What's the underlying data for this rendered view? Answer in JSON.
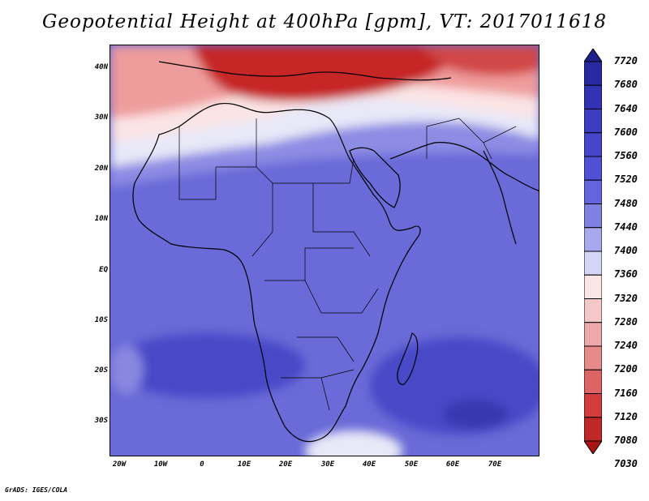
{
  "title": "Geopotential Height at 400hPa [gpm], VT: 2017011618",
  "credit": "GrADS: IGES/COLA",
  "axes": {
    "lat_labels": [
      "40N",
      "30N",
      "20N",
      "10N",
      "EQ",
      "10S",
      "20S",
      "30S"
    ],
    "lon_labels": [
      "20W",
      "10W",
      "0",
      "10E",
      "20E",
      "30E",
      "40E",
      "50E",
      "60E",
      "70E"
    ]
  },
  "colorbar": {
    "levels": [
      "7720",
      "7680",
      "7640",
      "7600",
      "7560",
      "7520",
      "7480",
      "7440",
      "7400",
      "7360",
      "7320",
      "7280",
      "7240",
      "7200",
      "7160",
      "7120",
      "7080",
      "7030"
    ],
    "colors": [
      "#1e1e8c",
      "#2828a0",
      "#3232b4",
      "#3c3cc3",
      "#4646cd",
      "#5050d7",
      "#6464dc",
      "#8080e0",
      "#a8a8ec",
      "#d4d4f6",
      "#fae6e6",
      "#f4c8c8",
      "#eeaaaa",
      "#e68a8a",
      "#dc6464",
      "#d23c3c",
      "#be2828",
      "#aa1414"
    ]
  },
  "map": {
    "region": "Africa, Middle East and South Asia",
    "lon_range": [
      -22,
      80
    ],
    "lat_range": [
      -37,
      46
    ],
    "field_low": "7030",
    "field_high": "7720",
    "high_color": "#3c3cc3",
    "low_color": "#b41e1e"
  }
}
